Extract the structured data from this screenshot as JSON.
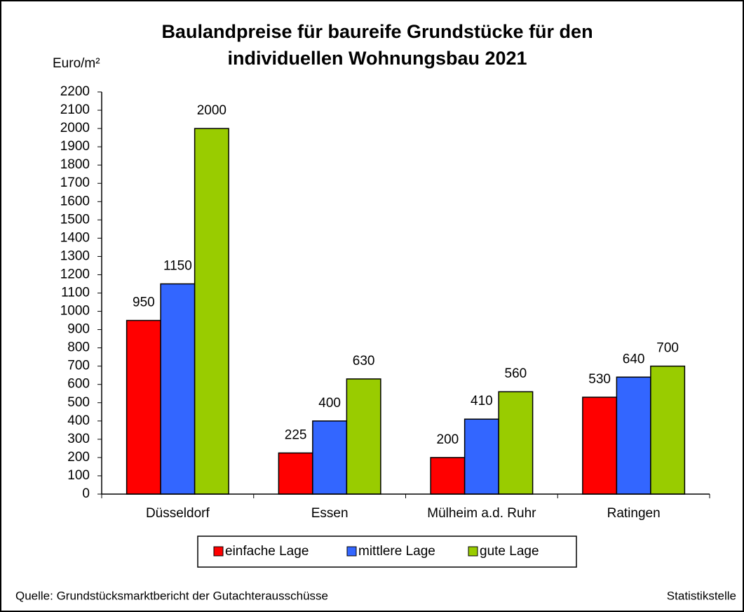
{
  "chart_data": {
    "type": "bar",
    "title": [
      "Baulandpreise für baureife Grundstücke für den",
      "individuellen Wohnungsbau 2021"
    ],
    "y_label": "Euro/m²",
    "categories": [
      "Düsseldorf",
      "Essen",
      "Mülheim a.d. Ruhr",
      "Ratingen"
    ],
    "series": [
      {
        "name": "einfache Lage",
        "color": "#ff0000",
        "values": [
          950,
          225,
          200,
          530
        ]
      },
      {
        "name": "mittlere Lage",
        "color": "#3366ff",
        "values": [
          1150,
          400,
          410,
          640
        ]
      },
      {
        "name": "gute Lage",
        "color": "#99cc00",
        "values": [
          2000,
          630,
          560,
          700
        ]
      }
    ],
    "ylim": [
      0,
      2200
    ],
    "yticks": [
      0,
      100,
      200,
      300,
      400,
      500,
      600,
      700,
      800,
      900,
      1000,
      1100,
      1200,
      1300,
      1400,
      1500,
      1600,
      1700,
      1800,
      1900,
      2000,
      2100,
      2200
    ],
    "legend": "bottom",
    "source": "Quelle: Grundstücksmarktbericht der Gutachterausschüsse",
    "credit": "Statistikstelle"
  }
}
